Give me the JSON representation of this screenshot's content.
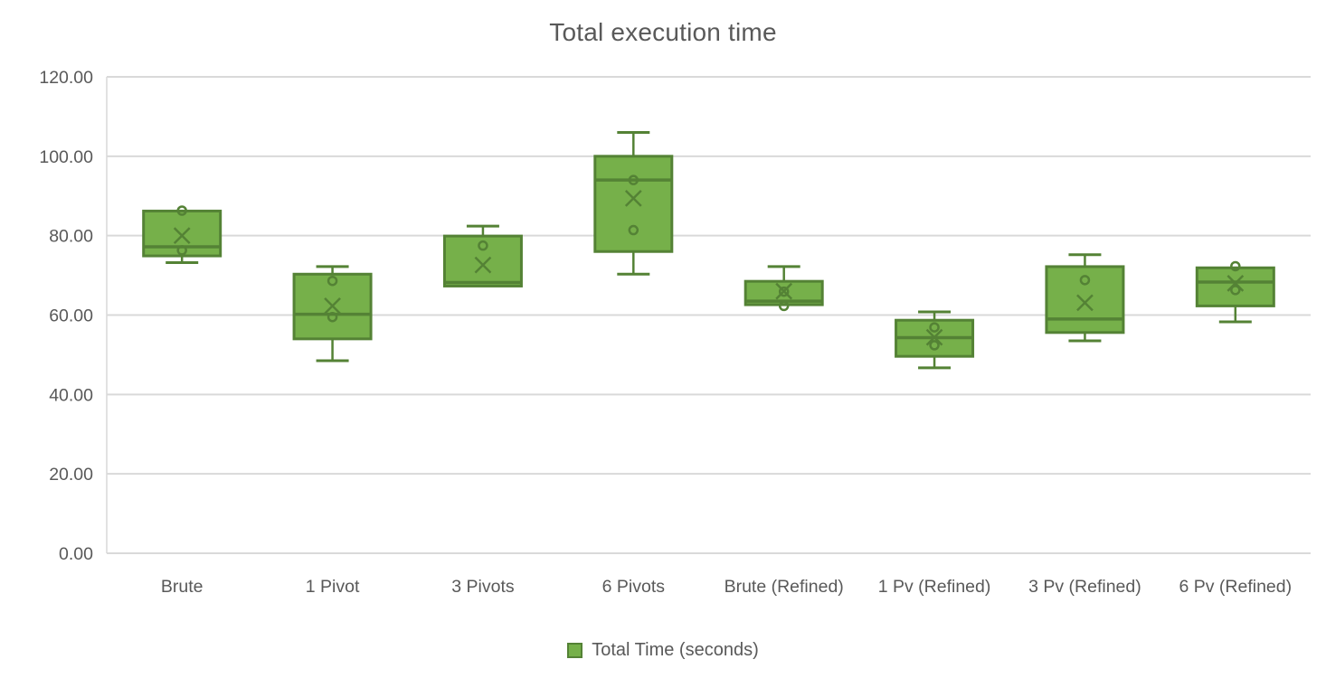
{
  "chart_data": {
    "type": "boxplot",
    "title": "Total execution time",
    "legend": {
      "series_label": "Total Time (seconds)",
      "position": "bottom"
    },
    "grid": true,
    "ylim": [
      0,
      120
    ],
    "ytick_step": 20,
    "ytick_labels": [
      "0.00",
      "20.00",
      "40.00",
      "60.00",
      "80.00",
      "100.00",
      "120.00"
    ],
    "categories": [
      "Brute",
      "1 Pivot",
      "3 Pivots",
      "6 Pivots",
      "Brute (Refined)",
      "1 Pv (Refined)",
      "3 Pv (Refined)",
      "6 Pv (Refined)"
    ],
    "boxes": [
      {
        "category": "Brute",
        "whisker_low": 73.2,
        "q1": 74.9,
        "median": 77.2,
        "q3": 86.2,
        "whisker_high": 86.2,
        "mean": 80.0,
        "points": [
          86.3,
          76.3
        ]
      },
      {
        "category": "1 Pivot",
        "whisker_low": 48.5,
        "q1": 54.0,
        "median": 60.2,
        "q3": 70.3,
        "whisker_high": 72.2,
        "mean": 62.3,
        "points": [
          68.6,
          59.5
        ]
      },
      {
        "category": "3 Pivots",
        "whisker_low": 67.3,
        "q1": 67.3,
        "median": 68.2,
        "q3": 79.9,
        "whisker_high": 82.4,
        "mean": 72.6,
        "points": [
          77.5
        ]
      },
      {
        "category": "6 Pivots",
        "whisker_low": 70.3,
        "q1": 76.0,
        "median": 94.0,
        "q3": 100.0,
        "whisker_high": 106.0,
        "mean": 89.4,
        "points": [
          94.0,
          81.4
        ]
      },
      {
        "category": "Brute (Refined)",
        "whisker_low": 62.6,
        "q1": 62.6,
        "median": 63.5,
        "q3": 68.5,
        "whisker_high": 72.2,
        "mean": 66.0,
        "points": [
          65.9,
          62.3
        ]
      },
      {
        "category": "1 Pv (Refined)",
        "whisker_low": 46.7,
        "q1": 49.6,
        "median": 54.3,
        "q3": 58.7,
        "whisker_high": 60.8,
        "mean": 54.4,
        "points": [
          56.9,
          52.4
        ]
      },
      {
        "category": "3 Pv (Refined)",
        "whisker_low": 53.5,
        "q1": 55.6,
        "median": 59.0,
        "q3": 72.2,
        "whisker_high": 75.2,
        "mean": 63.1,
        "points": [
          68.8
        ]
      },
      {
        "category": "6 Pv (Refined)",
        "whisker_low": 58.3,
        "q1": 62.3,
        "median": 68.3,
        "q3": 71.9,
        "whisker_high": 71.9,
        "mean": 68.0,
        "points": [
          72.3,
          66.3
        ]
      }
    ],
    "colors": {
      "box_fill": "#76B04A",
      "box_stroke": "#548235",
      "gridline": "#D9D9D9",
      "axis_line": "#D9D9D9",
      "text": "#595959",
      "background": "#FFFFFF"
    }
  }
}
